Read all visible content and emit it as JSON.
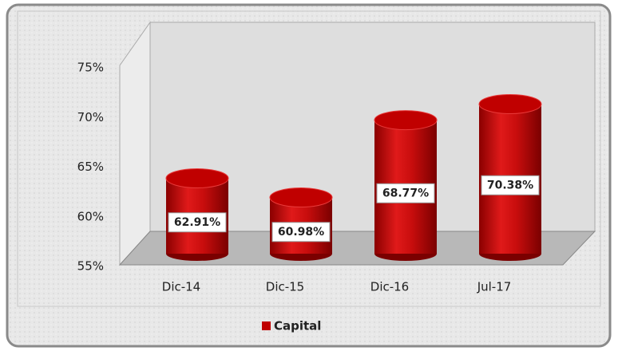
{
  "chart_data": {
    "type": "bar",
    "categories": [
      "Dic-14",
      "Dic-15",
      "Dic-16",
      "Jul-17"
    ],
    "series": [
      {
        "name": "Capital",
        "color": "#c00000",
        "values": [
          62.91,
          60.98,
          68.77,
          70.38
        ],
        "value_labels": [
          "62.91%",
          "60.98%",
          "68.77%",
          "70.38%"
        ]
      }
    ],
    "ylim": [
      55,
      75
    ],
    "yticks": [
      {
        "value": 55,
        "label": "55%"
      },
      {
        "value": 60,
        "label": "60%"
      },
      {
        "value": 65,
        "label": "65%"
      },
      {
        "value": 70,
        "label": "70%"
      },
      {
        "value": 75,
        "label": "75%"
      }
    ],
    "legend": "bottom"
  }
}
